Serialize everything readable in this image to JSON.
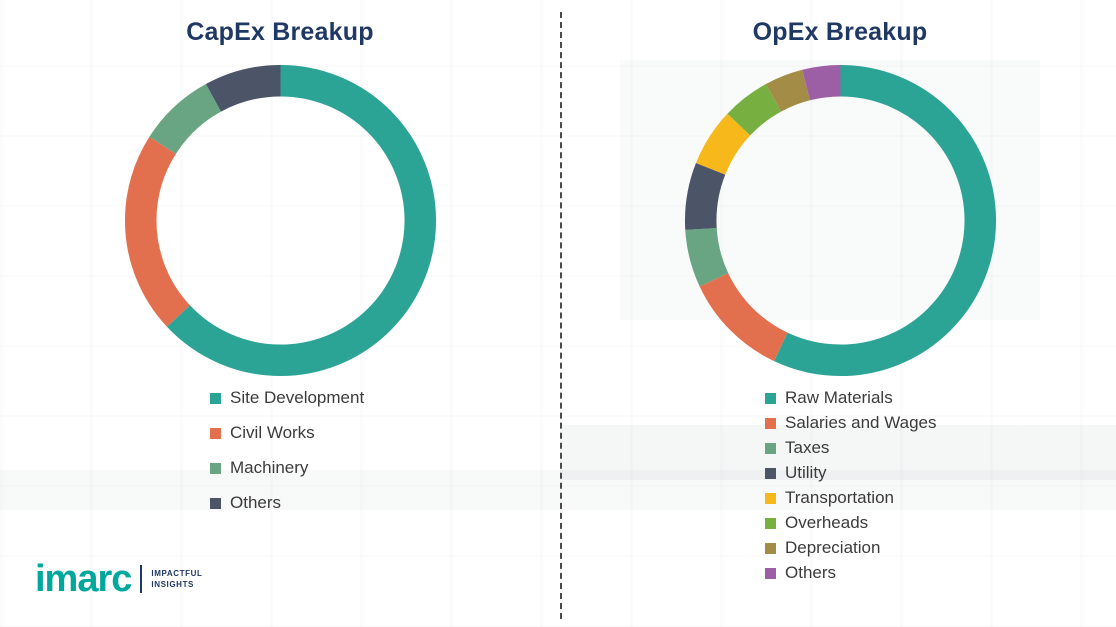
{
  "chart_data": [
    {
      "type": "pie",
      "subtype": "donut",
      "title": "CapEx Breakup",
      "labels": [
        "Site Development",
        "Civil Works",
        "Machinery",
        "Others"
      ],
      "values": [
        63,
        21,
        8,
        8
      ],
      "colors": [
        "#2CA495",
        "#E2704E",
        "#69A583",
        "#4C5568"
      ],
      "legend_position": "bottom",
      "start_angle_deg": 0,
      "direction": "clockwise"
    },
    {
      "type": "pie",
      "subtype": "donut",
      "title": "OpEx Breakup",
      "labels": [
        "Raw Materials",
        "Salaries and Wages",
        "Taxes",
        "Utility",
        "Transportation",
        "Overheads",
        "Depreciation",
        "Others"
      ],
      "values": [
        57,
        11,
        6,
        7,
        6,
        5,
        4,
        4
      ],
      "colors": [
        "#2CA495",
        "#E2704E",
        "#69A583",
        "#4C5568",
        "#F6B81A",
        "#77B041",
        "#A38D46",
        "#9C5FA5"
      ],
      "legend_position": "bottom",
      "start_angle_deg": 0,
      "direction": "clockwise"
    }
  ],
  "branding": {
    "logo_text": "imarc",
    "tagline": [
      "IMPACTFUL",
      "INSIGHTS"
    ],
    "logo_color": "#00A79D",
    "tagline_color": "#1F3864"
  },
  "colors": {
    "title_navy": "#1F3864",
    "legend_text": "#3B3B3B",
    "divider_gray": "#4A4A4A"
  }
}
